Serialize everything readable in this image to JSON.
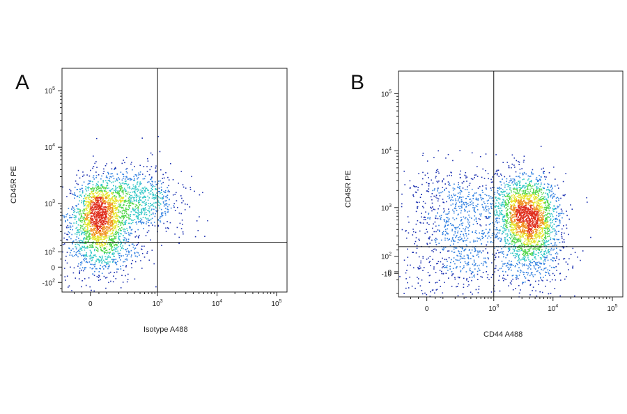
{
  "chart_data": [
    {
      "type": "scatter",
      "panel_label": "A",
      "xlabel": "Isotype A488",
      "ylabel": "CD45R PE",
      "x_scale": "biexponential",
      "y_scale": "biexponential",
      "x_ticks": [
        {
          "value": 0,
          "label": "0"
        },
        {
          "value": 1000,
          "label": "10^3"
        },
        {
          "value": 10000,
          "label": "10^4"
        },
        {
          "value": 100000,
          "label": "10^5"
        }
      ],
      "y_ticks": [
        {
          "value": -100,
          "label": "-10^2"
        },
        {
          "value": 0,
          "label": "0"
        },
        {
          "value": 100,
          "label": "10^2"
        },
        {
          "value": 1000,
          "label": "10^3"
        },
        {
          "value": 10000,
          "label": "10^4"
        },
        {
          "value": 100000,
          "label": "10^5"
        }
      ],
      "quadrant_gate": {
        "x": 1000,
        "y": 180
      },
      "colormap": [
        "#1a2fb0",
        "#2f7fe0",
        "#33c7c7",
        "#52d64a",
        "#e6e62e",
        "#f0901e",
        "#e0301e"
      ],
      "populations": [
        {
          "x_center": 50,
          "y_center": 600,
          "density": "high",
          "n": 1600
        },
        {
          "x_center": 60,
          "y_center": 120,
          "density": "medium",
          "n": 500
        },
        {
          "x_center": 400,
          "y_center": 1200,
          "density": "medium",
          "n": 700
        },
        {
          "x_center": 1500,
          "y_center": 800,
          "density": "sparse",
          "n": 80
        }
      ]
    },
    {
      "type": "scatter",
      "panel_label": "B",
      "xlabel": "CD44 A488",
      "ylabel": "CD45R PE",
      "x_scale": "biexponential",
      "y_scale": "biexponential",
      "x_ticks": [
        {
          "value": 0,
          "label": "0"
        },
        {
          "value": 1000,
          "label": "10^3"
        },
        {
          "value": 10000,
          "label": "10^4"
        },
        {
          "value": 100000,
          "label": "10^5"
        }
      ],
      "y_ticks": [
        {
          "value": -10,
          "label": "-10"
        },
        {
          "value": 0,
          "label": "0"
        },
        {
          "value": 100,
          "label": "10^2"
        },
        {
          "value": 1000,
          "label": "10^3"
        },
        {
          "value": 10000,
          "label": "10^4"
        },
        {
          "value": 100000,
          "label": "10^5"
        }
      ],
      "quadrant_gate": {
        "x": 1000,
        "y": 180
      },
      "colormap": [
        "#1a2fb0",
        "#2f7fe0",
        "#33c7c7",
        "#52d64a",
        "#e6e62e",
        "#f0901e",
        "#e0301e"
      ],
      "populations": [
        {
          "x_center": 4000,
          "y_center": 600,
          "density": "high",
          "n": 1500
        },
        {
          "x_center": 2500,
          "y_center": 1200,
          "density": "medium",
          "n": 700
        },
        {
          "x_center": 150,
          "y_center": 1000,
          "density": "sparse",
          "n": 500
        },
        {
          "x_center": 400,
          "y_center": 100,
          "density": "sparse",
          "n": 350
        },
        {
          "x_center": 4000,
          "y_center": 100,
          "density": "medium",
          "n": 400
        },
        {
          "x_center": 0,
          "y_center": 0,
          "density": "sparse",
          "n": 120
        }
      ]
    }
  ]
}
